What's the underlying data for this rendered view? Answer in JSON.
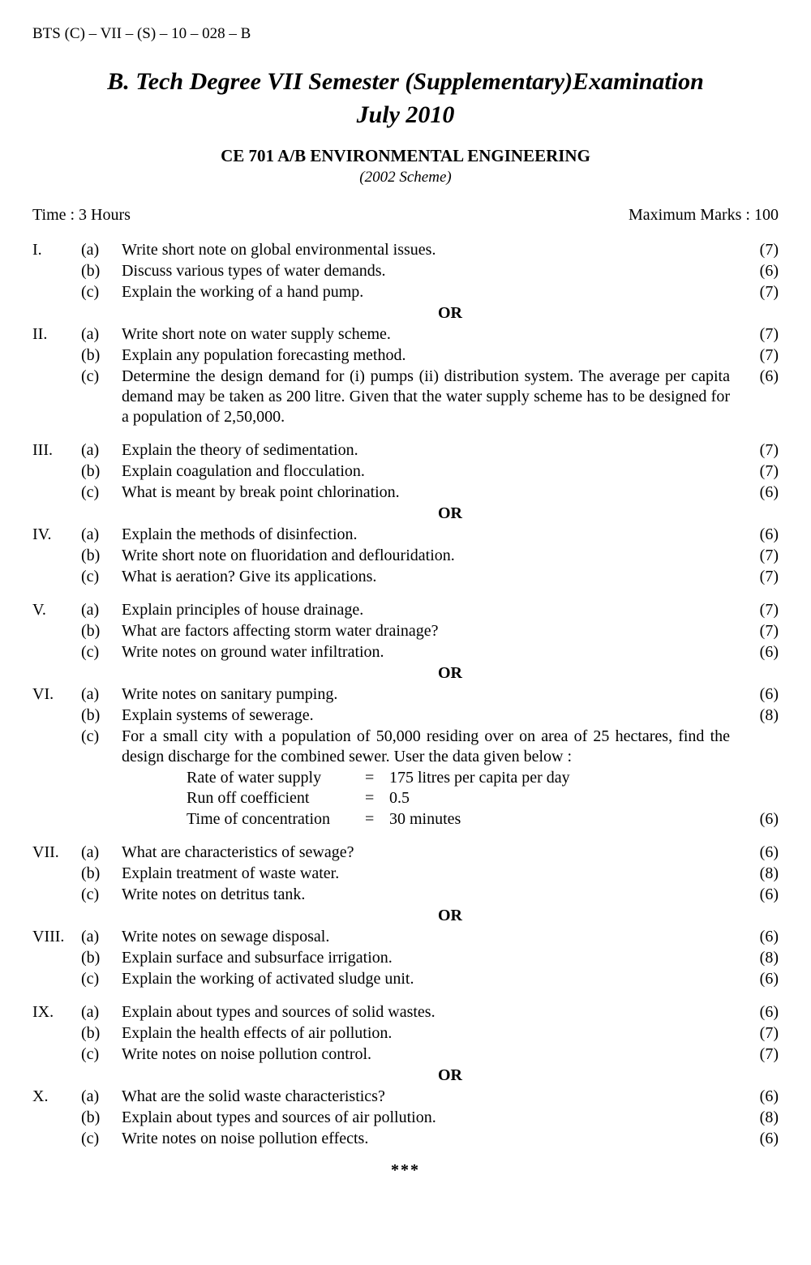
{
  "header": {
    "code": "BTS (C) – VII – (S) – 10 – 028 – B",
    "title_line1": "B. Tech Degree VII  Semester (Supplementary)Examination",
    "title_line2": "July 2010",
    "course": "CE 701 A/B  ENVIRONMENTAL ENGINEERING",
    "scheme": "(2002 Scheme)",
    "time": "Time : 3 Hours",
    "maxmarks": "Maximum Marks : 100"
  },
  "or_label": "OR",
  "end_mark": "***",
  "q1": {
    "roman": "I.",
    "a": "Write short note on global environmental issues.",
    "am": "(7)",
    "b": "Discuss various types of water demands.",
    "bm": "(6)",
    "c": "Explain the working of a hand pump.",
    "cm": "(7)"
  },
  "q2": {
    "roman": "II.",
    "a": "Write short note on water supply scheme.",
    "am": "(7)",
    "b": "Explain any population forecasting method.",
    "bm": "(7)",
    "c": "Determine the design demand for (i) pumps  (ii) distribution system.  The average per capita demand may be taken as 200 litre.  Given that the water supply scheme has to be designed for a population of 2,50,000.",
    "cm": "(6)"
  },
  "q3": {
    "roman": "III.",
    "a": "Explain the theory of sedimentation.",
    "am": "(7)",
    "b": "Explain coagulation and flocculation.",
    "bm": "(7)",
    "c": "What is meant by break point chlorination.",
    "cm": "(6)"
  },
  "q4": {
    "roman": "IV.",
    "a": "Explain the methods of disinfection.",
    "am": "(6)",
    "b": "Write short note on fluoridation and deflouridation.",
    "bm": "(7)",
    "c": "What is aeration?  Give its applications.",
    "cm": "(7)"
  },
  "q5": {
    "roman": "V.",
    "a": "Explain principles of house drainage.",
    "am": "(7)",
    "b": "What are factors affecting storm water drainage?",
    "bm": "(7)",
    "c": "Write notes on ground water infiltration.",
    "cm": "(6)"
  },
  "q6": {
    "roman": "VI.",
    "a": "Write notes on sanitary pumping.",
    "am": "(6)",
    "b": "Explain systems of sewerage.",
    "bm": "(8)",
    "c": "For a small city with a population of 50,000 residing over on area of 25 hectares, find the design discharge for the combined sewer.  User the data given below :",
    "cm": "(6)",
    "d1l": "Rate of water supply",
    "d1v": "175 litres per capita per day",
    "d2l": "Run off coefficient",
    "d2v": "0.5",
    "d3l": "Time of concentration",
    "d3v": "30 minutes"
  },
  "q7": {
    "roman": "VII.",
    "a": "What are characteristics of sewage?",
    "am": "(6)",
    "b": "Explain treatment of waste water.",
    "bm": "(8)",
    "c": "Write notes on detritus tank.",
    "cm": "(6)"
  },
  "q8": {
    "roman": "VIII.",
    "a": "Write notes on sewage disposal.",
    "am": "(6)",
    "b": "Explain surface and subsurface irrigation.",
    "bm": "(8)",
    "c": "Explain the working of activated sludge unit.",
    "cm": "(6)"
  },
  "q9": {
    "roman": "IX.",
    "a": "Explain about types and sources of solid wastes.",
    "am": "(6)",
    "b": "Explain the health effects of air pollution.",
    "bm": "(7)",
    "c": "Write notes on noise pollution control.",
    "cm": "(7)"
  },
  "q10": {
    "roman": "X.",
    "a": "What are the solid waste characteristics?",
    "am": "(6)",
    "b": "Explain about types and sources of air pollution.",
    "bm": "(8)",
    "c": "Write notes on noise pollution effects.",
    "cm": "(6)"
  }
}
